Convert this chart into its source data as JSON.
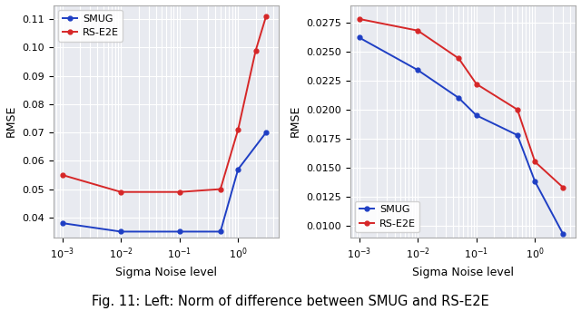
{
  "left": {
    "smug_x": [
      0.001,
      0.01,
      0.1,
      0.5,
      1.0,
      3.0
    ],
    "smug_y": [
      0.038,
      0.035,
      0.035,
      0.035,
      0.057,
      0.07
    ],
    "rse2e_x": [
      0.001,
      0.01,
      0.1,
      0.5,
      1.0,
      2.0,
      3.0
    ],
    "rse2e_y": [
      0.055,
      0.049,
      0.049,
      0.05,
      0.071,
      0.099,
      0.111
    ],
    "ylabel": "RMSE",
    "xlabel": "Sigma Noise level",
    "ylim": [
      0.033,
      0.115
    ],
    "yticks": [
      0.04,
      0.05,
      0.06,
      0.07,
      0.08,
      0.09,
      0.1,
      0.11
    ],
    "xlim": [
      0.0007,
      5.0
    ],
    "legend_loc": "upper left"
  },
  "right": {
    "smug_x": [
      0.001,
      0.01,
      0.05,
      0.1,
      0.5,
      1.0,
      3.0
    ],
    "smug_y": [
      0.0262,
      0.0234,
      0.021,
      0.0195,
      0.0178,
      0.0138,
      0.0093
    ],
    "rse2e_x": [
      0.001,
      0.01,
      0.05,
      0.1,
      0.5,
      1.0,
      3.0
    ],
    "rse2e_y": [
      0.0278,
      0.0268,
      0.0244,
      0.0222,
      0.02,
      0.0155,
      0.0133
    ],
    "ylabel": "RMSE",
    "xlabel": "Sigma Noise level",
    "ylim": [
      0.009,
      0.029
    ],
    "yticks": [
      0.01,
      0.0125,
      0.015,
      0.0175,
      0.02,
      0.0225,
      0.025,
      0.0275
    ],
    "xlim": [
      0.0007,
      5.0
    ],
    "legend_loc": "lower left"
  },
  "smug_color": "#1f3fc4",
  "rse2e_color": "#d62728",
  "bg_color": "#e8eaf0",
  "grid_color": "#ffffff",
  "caption": "Fig. 11: Left: Norm of difference between SMUG and RS-E2E",
  "caption_fontsize": 10.5,
  "tick_fontsize": 8,
  "label_fontsize": 9,
  "legend_fontsize": 8,
  "marker_size": 3.5,
  "line_width": 1.4
}
